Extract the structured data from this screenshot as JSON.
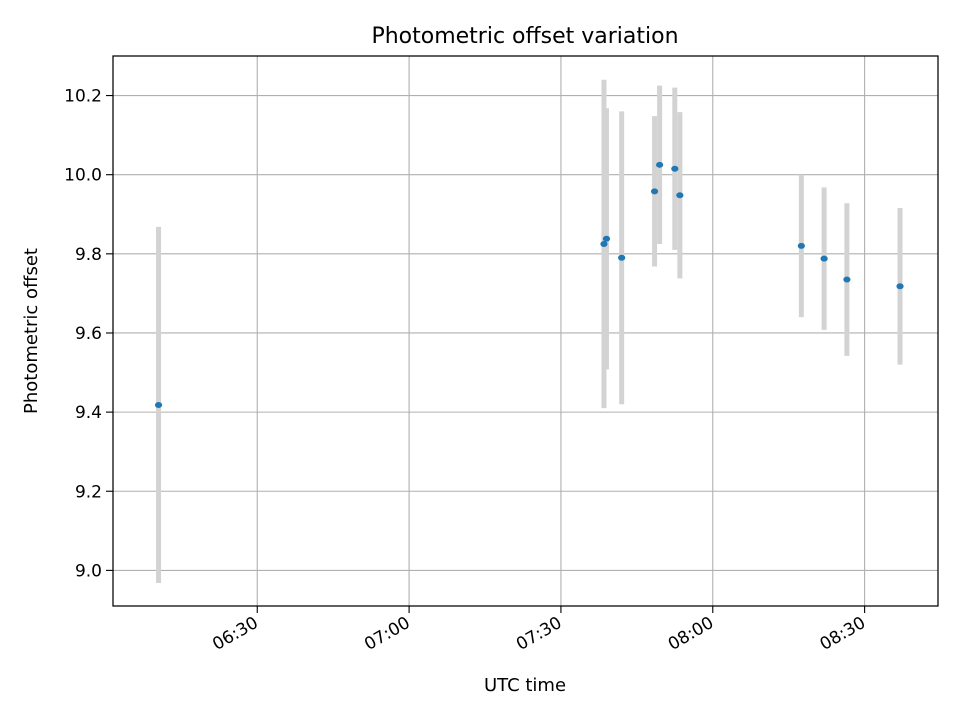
{
  "chart_data": {
    "type": "scatter",
    "title": "Photometric offset variation",
    "xlabel": "UTC time",
    "ylabel": "Photometric offset",
    "xlim": [
      "06:01:30",
      "08:44:30"
    ],
    "ylim": [
      8.91,
      10.3
    ],
    "xticks": [
      {
        "time": "06:30",
        "label": "06:30"
      },
      {
        "time": "07:00",
        "label": "07:00"
      },
      {
        "time": "07:30",
        "label": "07:30"
      },
      {
        "time": "08:00",
        "label": "08:00"
      },
      {
        "time": "08:30",
        "label": "08:30"
      }
    ],
    "yticks": [
      9.0,
      9.2,
      9.4,
      9.6,
      9.8,
      10.0,
      10.2
    ],
    "ytick_labels": [
      "9.0",
      "9.2",
      "9.4",
      "9.6",
      "9.8",
      "10.0",
      "10.2"
    ],
    "grid": true,
    "point_color": "#1f77b4",
    "errorbar_color": "#d3d3d3",
    "points": [
      {
        "time": "06:10:30",
        "y": 9.418,
        "err": 0.45
      },
      {
        "time": "07:38:30",
        "y": 9.825,
        "err": 0.415
      },
      {
        "time": "07:39:00",
        "y": 9.838,
        "err": 0.33
      },
      {
        "time": "07:42:00",
        "y": 9.79,
        "err": 0.37
      },
      {
        "time": "07:48:30",
        "y": 9.958,
        "err": 0.19
      },
      {
        "time": "07:49:30",
        "y": 10.025,
        "err": 0.2
      },
      {
        "time": "07:52:30",
        "y": 10.015,
        "err": 0.205
      },
      {
        "time": "07:53:30",
        "y": 9.948,
        "err": 0.21
      },
      {
        "time": "08:17:30",
        "y": 9.82,
        "err": 0.18
      },
      {
        "time": "08:22:00",
        "y": 9.788,
        "err": 0.18
      },
      {
        "time": "08:26:30",
        "y": 9.735,
        "err": 0.193
      },
      {
        "time": "08:37:00",
        "y": 9.718,
        "err": 0.198
      }
    ]
  }
}
